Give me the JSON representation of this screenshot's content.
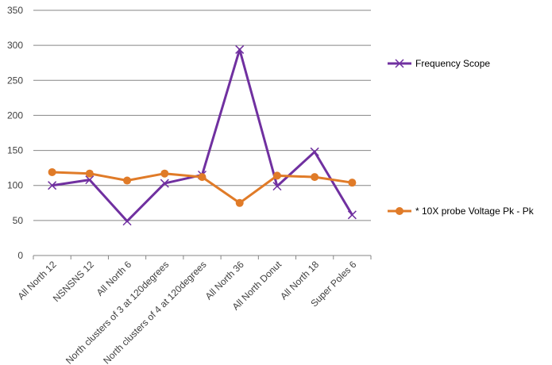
{
  "chart_data": {
    "type": "line",
    "title": "",
    "xlabel": "",
    "ylabel": "",
    "ylim": [
      0,
      350
    ],
    "yticks": [
      0,
      50,
      100,
      150,
      200,
      250,
      300,
      350
    ],
    "grid": "horizontal",
    "legend_position": "right",
    "categories": [
      "All North 12",
      "NSNSNS 12",
      "All North 6",
      "North clusters of 3 at 120degrees",
      "North clusters of 4 at 120degrees",
      "All North 36",
      "All North Donut",
      "All North 18",
      "Super Poles 6"
    ],
    "series": [
      {
        "name": "Frequency Scope",
        "color": "#7030A0",
        "marker": "x",
        "values": [
          100,
          108,
          49,
          103,
          115,
          294,
          99,
          148,
          58
        ]
      },
      {
        "name": "* 10X probe Voltage Pk - Pk",
        "color": "#E07B28",
        "marker": "circle",
        "values": [
          119,
          117,
          107,
          117,
          112,
          75,
          114,
          112,
          104
        ]
      }
    ]
  }
}
